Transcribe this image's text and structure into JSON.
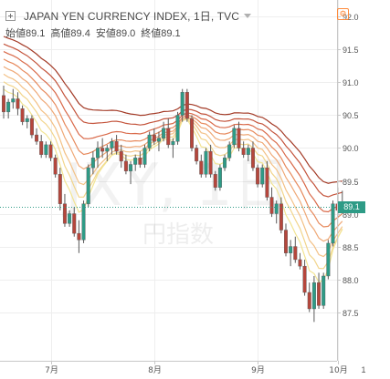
{
  "header": {
    "title": "JAPAN YEN CURRENCY INDEX, 1日, TVC",
    "ohlc": [
      {
        "label": "始値",
        "value": "89.1"
      },
      {
        "label": "高値",
        "value": "89.4"
      },
      {
        "label": "安値",
        "value": "89.0"
      },
      {
        "label": "終値",
        "value": "89.1"
      }
    ]
  },
  "watermark": {
    "symbol": "JXY, 1日",
    "subtitle": "円指数"
  },
  "colors": {
    "up": "#2e9b86",
    "down": "#b5463c",
    "bands": [
      "#a33a26",
      "#c4543c",
      "#d96a4a",
      "#e78a5d",
      "#efa977",
      "#f3c186",
      "#f2d58c",
      "#f2e493"
    ]
  },
  "chart_data": {
    "type": "candlestick",
    "x_ticks": [
      "7月",
      "8月",
      "9月",
      "10月"
    ],
    "x_tick_positions": [
      10,
      32,
      54,
      71
    ],
    "y_ticks": [
      "92.0",
      "91.5",
      "91.0",
      "90.5",
      "90.0",
      "89.5",
      "89.0",
      "88.5",
      "88.0",
      "87.5"
    ],
    "ylim": [
      87.05,
      92.2
    ],
    "last_price": "89.1",
    "candles": [
      [
        90.8,
        90.95,
        90.45,
        90.55
      ],
      [
        90.55,
        90.75,
        90.45,
        90.7
      ],
      [
        90.7,
        90.9,
        90.6,
        90.75
      ],
      [
        90.75,
        90.85,
        90.5,
        90.6
      ],
      [
        90.6,
        90.65,
        90.35,
        90.4
      ],
      [
        90.4,
        90.5,
        90.3,
        90.45
      ],
      [
        90.45,
        90.5,
        90.15,
        90.2
      ],
      [
        90.2,
        90.3,
        90.05,
        90.1
      ],
      [
        90.1,
        90.2,
        89.85,
        89.9
      ],
      [
        89.9,
        90.1,
        89.85,
        90.05
      ],
      [
        90.05,
        90.1,
        89.8,
        89.85
      ],
      [
        89.85,
        89.9,
        89.55,
        89.6
      ],
      [
        89.6,
        89.7,
        89.05,
        89.15
      ],
      [
        89.15,
        89.3,
        88.8,
        88.85
      ],
      [
        88.85,
        89.05,
        88.8,
        89.0
      ],
      [
        89.0,
        89.1,
        88.65,
        88.7
      ],
      [
        88.7,
        88.9,
        88.4,
        88.6
      ],
      [
        88.6,
        89.2,
        88.55,
        89.15
      ],
      [
        89.15,
        89.75,
        89.1,
        89.7
      ],
      [
        89.7,
        89.95,
        89.6,
        89.85
      ],
      [
        89.85,
        90.1,
        89.7,
        90.0
      ],
      [
        90.0,
        90.15,
        89.85,
        89.95
      ],
      [
        89.95,
        90.05,
        89.8,
        90.0
      ],
      [
        90.0,
        90.15,
        89.9,
        90.1
      ],
      [
        90.1,
        90.2,
        89.9,
        89.95
      ],
      [
        89.95,
        90.05,
        89.7,
        89.8
      ],
      [
        89.8,
        89.9,
        89.6,
        89.65
      ],
      [
        89.65,
        89.8,
        89.45,
        89.75
      ],
      [
        89.75,
        89.9,
        89.65,
        89.85
      ],
      [
        89.85,
        89.95,
        89.7,
        89.75
      ],
      [
        89.75,
        90.05,
        89.7,
        90.0
      ],
      [
        90.0,
        90.25,
        89.95,
        90.2
      ],
      [
        90.2,
        90.3,
        90.05,
        90.1
      ],
      [
        90.1,
        90.25,
        89.95,
        90.15
      ],
      [
        90.15,
        90.4,
        90.1,
        90.3
      ],
      [
        90.3,
        90.45,
        90.0,
        90.05
      ],
      [
        90.05,
        90.15,
        89.85,
        90.1
      ],
      [
        90.1,
        90.55,
        90.05,
        90.5
      ],
      [
        90.5,
        90.9,
        90.4,
        90.85
      ],
      [
        90.85,
        90.9,
        90.4,
        90.45
      ],
      [
        90.45,
        90.5,
        89.95,
        90.0
      ],
      [
        90.0,
        90.05,
        89.75,
        89.8
      ],
      [
        89.8,
        89.9,
        89.55,
        89.6
      ],
      [
        89.6,
        90.0,
        89.55,
        89.95
      ],
      [
        89.95,
        90.05,
        89.55,
        89.6
      ],
      [
        89.6,
        89.65,
        89.35,
        89.4
      ],
      [
        89.4,
        89.75,
        89.35,
        89.7
      ],
      [
        89.7,
        89.9,
        89.65,
        89.85
      ],
      [
        89.85,
        90.1,
        89.8,
        90.05
      ],
      [
        90.05,
        90.35,
        90.0,
        90.3
      ],
      [
        90.3,
        90.4,
        89.95,
        90.0
      ],
      [
        90.0,
        90.1,
        89.85,
        89.9
      ],
      [
        89.9,
        90.05,
        89.8,
        90.0
      ],
      [
        90.0,
        90.1,
        89.65,
        89.7
      ],
      [
        89.7,
        89.75,
        89.4,
        89.45
      ],
      [
        89.45,
        89.75,
        89.4,
        89.7
      ],
      [
        89.7,
        89.8,
        89.2,
        89.25
      ],
      [
        89.25,
        89.4,
        88.95,
        89.0
      ],
      [
        89.0,
        89.2,
        88.85,
        89.15
      ],
      [
        89.15,
        89.25,
        88.7,
        88.75
      ],
      [
        88.75,
        88.85,
        88.35,
        88.4
      ],
      [
        88.4,
        88.6,
        88.2,
        88.5
      ],
      [
        88.5,
        88.65,
        88.25,
        88.3
      ],
      [
        88.3,
        88.4,
        88.15,
        88.2
      ],
      [
        88.2,
        88.3,
        87.75,
        87.8
      ],
      [
        87.8,
        87.95,
        87.5,
        87.55
      ],
      [
        87.55,
        88.05,
        87.35,
        87.95
      ],
      [
        87.95,
        88.1,
        87.55,
        87.6
      ],
      [
        87.6,
        88.1,
        87.55,
        88.05
      ],
      [
        88.05,
        88.6,
        88.0,
        88.55
      ],
      [
        88.55,
        89.2,
        88.5,
        89.15
      ],
      [
        89.15,
        89.4,
        88.95,
        89.05
      ],
      [
        89.05,
        89.35,
        89.0,
        89.1
      ]
    ]
  }
}
